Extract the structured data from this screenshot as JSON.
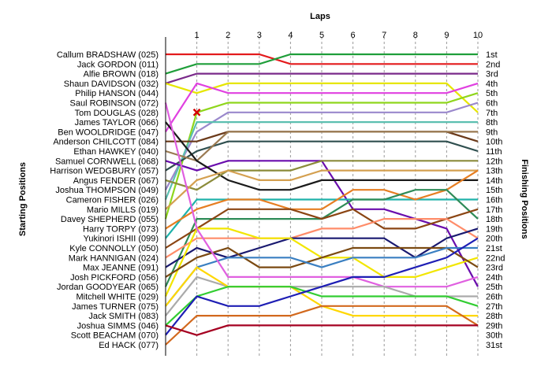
{
  "chart_data": {
    "type": "line",
    "title": "Laps",
    "ylabel_left": "Starting Positions",
    "ylabel_right": "Finishing Positions",
    "x": [
      0,
      1,
      2,
      3,
      4,
      5,
      6,
      7,
      8,
      9,
      10
    ],
    "x_tick_labels": [
      "1",
      "2",
      "3",
      "4",
      "5",
      "6",
      "7",
      "8",
      "9",
      "10"
    ],
    "starting_labels": [
      "Callum BRADSHAW (025)",
      "Jack GORDON (011)",
      "Alfie BROWN (018)",
      "Shaun DAVIDSON (032)",
      "Philip HANSON (044)",
      "Saul ROBINSON (072)",
      "Tom DOUGLAS (028)",
      "James TAYLOR (066)",
      "Ben WOOLDRIDGE (047)",
      "Anderson CHILCOTT (084)",
      "Ethan HAWKEY (040)",
      "Samuel CORNWELL (068)",
      "Harrison WEDGBURY (057)",
      "Angus FENDER (067)",
      "Joshua THOMPSON (049)",
      "Cameron FISHER (026)",
      "Mario MILLS (019)",
      "Davey SHEPHERD (055)",
      "Harry TORPY (073)",
      "Yukinori ISHII (099)",
      "Kyle CONNOLLY (050)",
      "Mark HANNIGAN (024)",
      "Max JEANNE (091)",
      "Josh PICKFORD (056)",
      "Jordan GOODYEAR (065)",
      "Mitchell WHITE (029)",
      "James TURNER (075)",
      "Jack SMITH (083)",
      "Joshua SIMMS (046)",
      "Scott BEACHAM (070)",
      "Ed HACK (077)"
    ],
    "finishing_labels": [
      "1st",
      "2nd",
      "3rd",
      "4th",
      "5th",
      "6th",
      "7th",
      "8th",
      "9th",
      "10th",
      "11th",
      "12th",
      "13th",
      "14th",
      "15th",
      "16th",
      "17th",
      "18th",
      "19th",
      "20th",
      "21st",
      "22nd",
      "23rd",
      "24th",
      "25th",
      "26th",
      "27th",
      "28th",
      "29th",
      "30th",
      "31st"
    ],
    "ylim": [
      1,
      31
    ],
    "y_reversed": true,
    "retirement_marker": {
      "driver": "Tom DOUGLAS (028)",
      "lap": 1,
      "position": 7
    },
    "series": [
      {
        "color": "#e31a1c",
        "values": [
          1,
          1,
          1,
          1,
          2,
          2,
          2,
          2,
          2,
          2,
          2
        ]
      },
      {
        "color": "#1f9e3a",
        "values": [
          3,
          2,
          2,
          2,
          1,
          1,
          1,
          1,
          1,
          1,
          1
        ]
      },
      {
        "color": "#7a2a8a",
        "values": [
          4,
          3,
          3,
          3,
          3,
          3,
          3,
          3,
          3,
          3,
          3
        ]
      },
      {
        "color": "#e6e600",
        "values": [
          4,
          5,
          4,
          4,
          4,
          4,
          4,
          4,
          4,
          4,
          7
        ]
      },
      {
        "color": "#e040e0",
        "values": [
          9,
          4,
          5,
          5,
          5,
          5,
          5,
          5,
          5,
          5,
          4
        ]
      },
      {
        "color": "#8fd61c",
        "values": [
          18,
          7,
          6,
          6,
          6,
          6,
          6,
          6,
          6,
          6,
          5
        ]
      },
      {
        "color": "#9a88cc",
        "values": [
          15,
          9,
          7,
          7,
          7,
          7,
          7,
          7,
          7,
          7,
          6
        ]
      },
      {
        "color": "#5bbfb0",
        "values": [
          16,
          8,
          8,
          8,
          8,
          8,
          8,
          8,
          8,
          8,
          8
        ]
      },
      {
        "color": "#2f4f4f",
        "values": [
          13,
          11,
          10,
          10,
          10,
          10,
          10,
          10,
          10,
          10,
          11
        ]
      },
      {
        "color": "#6b3a1a",
        "values": [
          10,
          10,
          9,
          9,
          9,
          9,
          9,
          9,
          9,
          9,
          10
        ]
      },
      {
        "color": "#9a7a52",
        "values": [
          11,
          12,
          9,
          9,
          9,
          9,
          9,
          9,
          9,
          9,
          9
        ]
      },
      {
        "color": "#6a0dad",
        "values": [
          12,
          13,
          12,
          12,
          12,
          12,
          17,
          17,
          18,
          19,
          25
        ]
      },
      {
        "color": "#1a1a1a",
        "values": [
          8,
          12,
          14,
          15,
          15,
          14,
          14,
          14,
          14,
          14,
          14
        ]
      },
      {
        "color": "#8b8b3a",
        "values": [
          14,
          15,
          13,
          13,
          13,
          12,
          12,
          12,
          12,
          12,
          12
        ]
      },
      {
        "color": "#d4a050",
        "values": [
          17,
          14,
          13,
          14,
          14,
          13,
          13,
          13,
          13,
          13,
          13
        ]
      },
      {
        "color": "#20b2aa",
        "values": [
          20,
          16,
          16,
          16,
          16,
          16,
          16,
          16,
          16,
          16,
          16
        ]
      },
      {
        "color": "#e67e22",
        "values": [
          19,
          17,
          16,
          16,
          17,
          17,
          15,
          15,
          16,
          15,
          13
        ]
      },
      {
        "color": "#2e8b57",
        "values": [
          25,
          18,
          18,
          18,
          18,
          18,
          16,
          16,
          15,
          15,
          18
        ]
      },
      {
        "color": "#8b4513",
        "values": [
          21,
          19,
          17,
          17,
          17,
          18,
          17,
          19,
          19,
          18,
          17
        ]
      },
      {
        "color": "#ff8c69",
        "values": [
          22,
          20,
          20,
          20,
          20,
          19,
          19,
          18,
          18,
          18,
          20
        ]
      },
      {
        "color": "#191970",
        "values": [
          23,
          21,
          22,
          21,
          20,
          20,
          20,
          20,
          22,
          20,
          19
        ]
      },
      {
        "color": "#f2e600",
        "values": [
          26,
          19,
          19,
          20,
          20,
          22,
          22,
          24,
          24,
          23,
          22
        ]
      },
      {
        "color": "#7b4a12",
        "values": [
          24,
          22,
          21,
          23,
          23,
          22,
          21,
          21,
          21,
          21,
          23
        ]
      },
      {
        "color": "#3a7fc1",
        "values": [
          27,
          23,
          22,
          22,
          22,
          23,
          22,
          22,
          22,
          21,
          21
        ]
      },
      {
        "color": "#e060e0",
        "values": [
          6,
          19,
          24,
          24,
          24,
          24,
          24,
          25,
          25,
          25,
          24
        ]
      },
      {
        "color": "#aaaaaa",
        "values": [
          28,
          24,
          25,
          25,
          25,
          25,
          25,
          25,
          26,
          26,
          26
        ]
      },
      {
        "color": "#ffd700",
        "values": [
          27,
          23,
          25,
          25,
          25,
          27,
          28,
          28,
          28,
          28,
          28
        ]
      },
      {
        "color": "#32cd32",
        "values": [
          29,
          26,
          25,
          25,
          25,
          26,
          26,
          26,
          26,
          26,
          27
        ]
      },
      {
        "color": "#1e1eb4",
        "values": [
          30,
          26,
          27,
          27,
          26,
          25,
          24,
          24,
          23,
          22,
          20
        ]
      },
      {
        "color": "#d2691e",
        "values": [
          31,
          28,
          28,
          28,
          28,
          27,
          27,
          27,
          27,
          27,
          29
        ]
      },
      {
        "color": "#a50021",
        "values": [
          29,
          30,
          29,
          29,
          29,
          29,
          29,
          29,
          29,
          29,
          29
        ]
      }
    ]
  }
}
